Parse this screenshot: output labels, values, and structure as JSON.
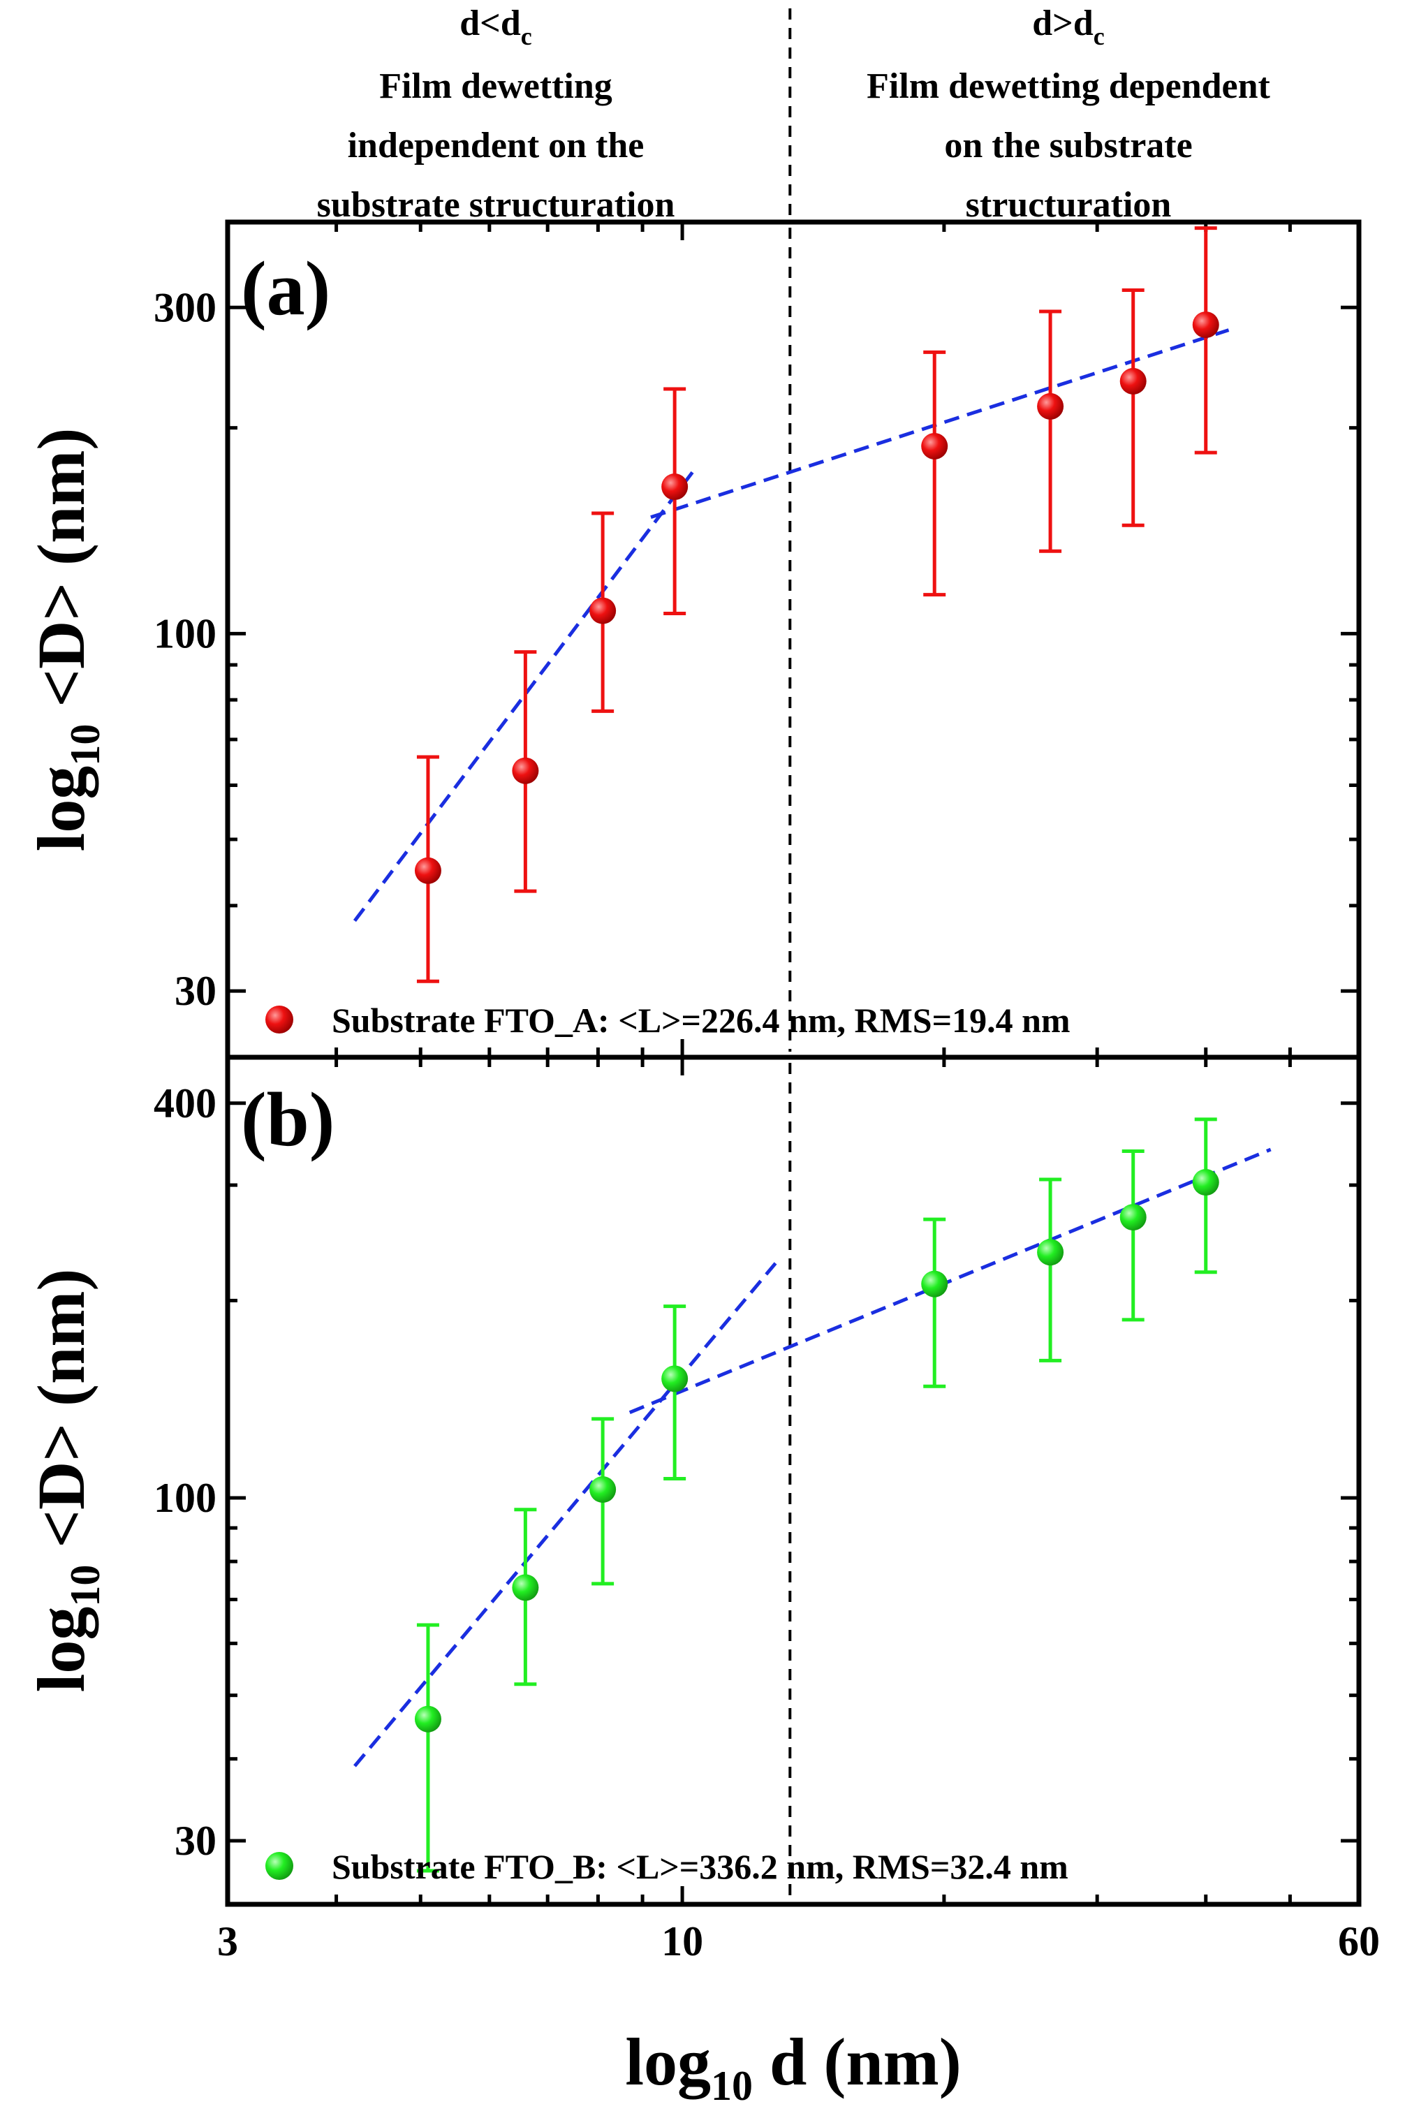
{
  "header": {
    "left": {
      "line1_main": "d<d",
      "line1_sub": "c",
      "line2": "Film dewetting",
      "line3": "independent on the",
      "line4": "substrate structuration"
    },
    "right": {
      "line1_main": "d>d",
      "line1_sub": "c",
      "line2": "Film dewetting dependent",
      "line3": "on the substrate",
      "line4": "structuration"
    }
  },
  "colors": {
    "series_a": "#ee1111",
    "series_b": "#22ee22",
    "fit": "#1a2ee0",
    "divider": "#000000"
  },
  "chart_data": [
    {
      "type": "scatter",
      "panel_label": "(a)",
      "xscale": "log",
      "yscale": "log",
      "xlim": [
        3,
        60
      ],
      "ylim": [
        24,
        400
      ],
      "ylabel_main": "log",
      "ylabel_sub": "10",
      "ylabel_rest": " <D> (nm)",
      "yticks": [
        30,
        100,
        300
      ],
      "ytick_labels": [
        "30",
        "100",
        "300"
      ],
      "critical_thickness_x": 13.3,
      "series": [
        {
          "name": "Substrate FTO_A: <L>=226.4 nm, RMS=19.4 nm",
          "x": [
            5.1,
            6.6,
            8.1,
            9.8,
            19.5,
            26.5,
            33.0,
            40.0
          ],
          "y": [
            45,
            63,
            108,
            164,
            188,
            215,
            234,
            283
          ],
          "y_low": [
            31,
            42,
            77,
            107,
            114,
            132,
            144,
            184
          ],
          "y_high": [
            66,
            94,
            150,
            228,
            258,
            296,
            318,
            392
          ]
        }
      ],
      "fits": [
        {
          "x": [
            4.2,
            10.3
          ],
          "y": [
            38,
            173
          ]
        },
        {
          "x": [
            9.2,
            42.5
          ],
          "y": [
            148,
            278
          ]
        }
      ]
    },
    {
      "type": "scatter",
      "panel_label": "(b)",
      "xscale": "log",
      "yscale": "log",
      "xlim": [
        3,
        60
      ],
      "ylim": [
        24,
        470
      ],
      "ylabel_main": "log",
      "ylabel_sub": "10",
      "ylabel_rest": " <D> (nm)",
      "yticks": [
        30,
        100,
        400
      ],
      "ytick_labels": [
        "30",
        "100",
        "400"
      ],
      "xticks": [
        3,
        10,
        60
      ],
      "xtick_labels": [
        "3",
        "10",
        "60"
      ],
      "xlabel_main": "log",
      "xlabel_sub": "10",
      "xlabel_rest": " d (nm)",
      "critical_thickness_x": 13.3,
      "series": [
        {
          "name": "Substrate FTO_B: <L>=336.2 nm, RMS=32.4 nm",
          "x": [
            5.1,
            6.6,
            8.1,
            9.8,
            19.5,
            26.5,
            33.0,
            40.0
          ],
          "y": [
            46,
            73,
            103,
            152,
            212,
            237,
            268,
            303
          ],
          "y_low": [
            27,
            52,
            74,
            107,
            148,
            162,
            187,
            221
          ],
          "y_high": [
            64,
            96,
            132,
            196,
            266,
            306,
            338,
            378
          ]
        }
      ],
      "fits": [
        {
          "x": [
            4.2,
            12.8
          ],
          "y": [
            39,
            228
          ]
        },
        {
          "x": [
            8.7,
            47.5
          ],
          "y": [
            135,
            340
          ]
        }
      ]
    }
  ]
}
